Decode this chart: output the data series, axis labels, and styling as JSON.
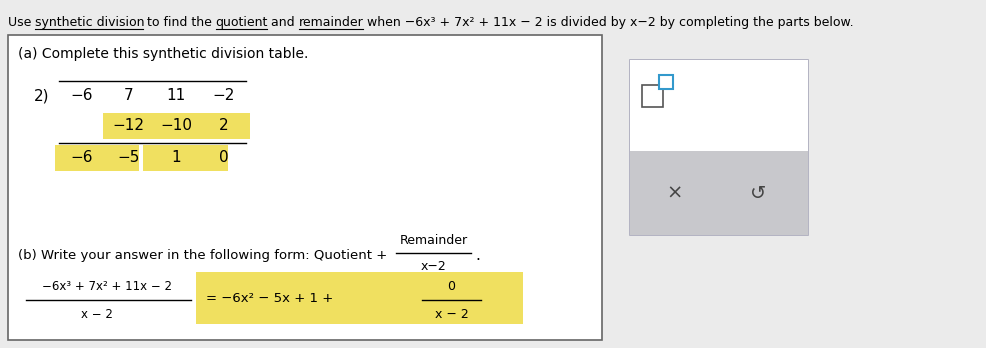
{
  "bg_color": "#ebebeb",
  "box_bg": "#ffffff",
  "box_border": "#888888",
  "highlight_yellow": "#f0e060",
  "widget_top_bg": "#ffffff",
  "widget_bottom_bg": "#c8c8c8",
  "widget_border": "#9999aa",
  "sq_border_color": "#3399cc",
  "sq_large_color": "#ffffff",
  "section_a_label": "(a) Complete this synthetic division table.",
  "section_b_label": "(b) Write your answer in the following form: Quotient +",
  "remainder_over": "Remainder",
  "remainder_under": "x−2",
  "synth_divisor": "2)",
  "synth_row1": [
    "−6",
    "7",
    "11",
    "−2"
  ],
  "synth_row2": [
    "−12",
    "−10",
    "2"
  ],
  "synth_row3": [
    "−6",
    "−5",
    "1",
    "0"
  ],
  "answer_num": "−6x³ + 7x² + 11x − 2",
  "answer_den": "x − 2",
  "answer_rhs": "= −6x² − 5x + 1 +",
  "answer_rem_num": "0",
  "answer_rem_den": "x − 2"
}
